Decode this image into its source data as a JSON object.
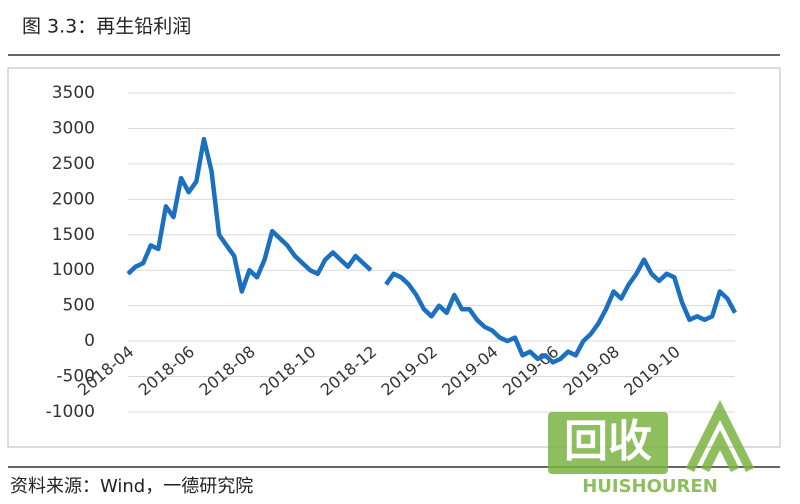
{
  "chart_data": {
    "type": "line",
    "title": "图 3.3：再生铅利润",
    "source": "资料来源：Wind，一德研究院",
    "categories": [
      "2018-04",
      null,
      null,
      null,
      null,
      null,
      null,
      null,
      "2018-06",
      null,
      null,
      null,
      null,
      null,
      null,
      null,
      "2018-08",
      null,
      null,
      null,
      null,
      null,
      null,
      null,
      "2018-10",
      null,
      null,
      null,
      null,
      null,
      null,
      null,
      "2018-12",
      null,
      null,
      null,
      null,
      null,
      null,
      null,
      "2019-02",
      null,
      null,
      null,
      null,
      null,
      null,
      null,
      "2019-04",
      null,
      null,
      null,
      null,
      null,
      null,
      null,
      "2019-06",
      null,
      null,
      null,
      null,
      null,
      null,
      null,
      "2019-08",
      null,
      null,
      null,
      null,
      null,
      null,
      null,
      "2019-10",
      null,
      null,
      null,
      null,
      null,
      null,
      null,
      null
    ],
    "values": [
      950,
      1050,
      1100,
      1350,
      1300,
      1900,
      1750,
      2300,
      2100,
      2250,
      2850,
      2400,
      1500,
      1350,
      1200,
      700,
      1000,
      900,
      1150,
      1550,
      1450,
      1350,
      1200,
      1100,
      1000,
      950,
      1150,
      1250,
      1150,
      1050,
      1200,
      1100,
      1000,
      null,
      800,
      950,
      900,
      800,
      650,
      450,
      350,
      500,
      400,
      650,
      450,
      450,
      300,
      200,
      150,
      50,
      0,
      50,
      -200,
      -150,
      -250,
      -200,
      -300,
      -250,
      -150,
      -200,
      0,
      100,
      250,
      450,
      700,
      600,
      800,
      950,
      1150,
      950,
      850,
      950,
      900,
      550,
      300,
      350,
      300,
      350,
      700,
      600,
      400
    ],
    "color": "#1b70c0",
    "ylim": [
      -1000,
      3500
    ],
    "yticks": [
      -1000,
      -500,
      0,
      500,
      1000,
      1500,
      2000,
      2500,
      3000,
      3500
    ],
    "grid": true
  },
  "watermark": {
    "logo": "回收",
    "brand": "HUISHOUREN"
  }
}
